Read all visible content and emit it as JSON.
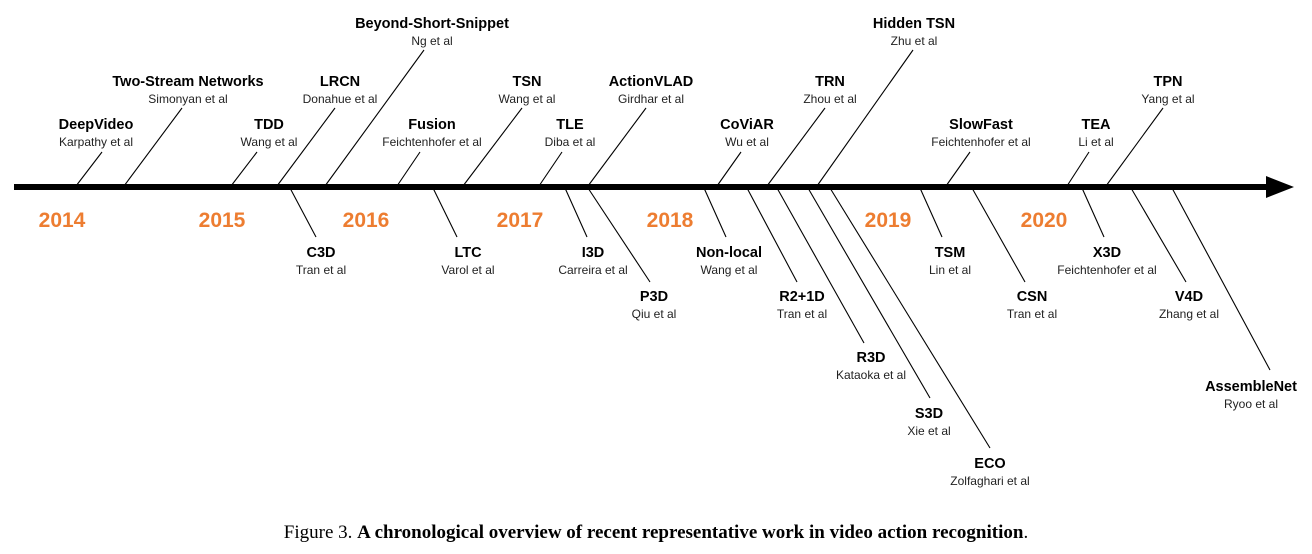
{
  "diagram": {
    "years": [
      "2014",
      "2015",
      "2016",
      "2017",
      "2018",
      "2019",
      "2020"
    ],
    "methods": [
      {
        "id": "deepvideo",
        "name": "DeepVideo",
        "authors": "Karpathy et al"
      },
      {
        "id": "two-stream",
        "name": "Two-Stream Networks",
        "authors": "Simonyan et al"
      },
      {
        "id": "tdd",
        "name": "TDD",
        "authors": "Wang et al"
      },
      {
        "id": "lrcn",
        "name": "LRCN",
        "authors": "Donahue et al"
      },
      {
        "id": "beyond-short-snippet",
        "name": "Beyond-Short-Snippet",
        "authors": "Ng et al"
      },
      {
        "id": "fusion",
        "name": "Fusion",
        "authors": "Feichtenhofer et al"
      },
      {
        "id": "tsn",
        "name": "TSN",
        "authors": "Wang et al"
      },
      {
        "id": "tle",
        "name": "TLE",
        "authors": "Diba et al"
      },
      {
        "id": "actionvlad",
        "name": "ActionVLAD",
        "authors": "Girdhar et al"
      },
      {
        "id": "coviar",
        "name": "CoViAR",
        "authors": "Wu et al"
      },
      {
        "id": "trn",
        "name": "TRN",
        "authors": "Zhou et al"
      },
      {
        "id": "hidden-tsn",
        "name": "Hidden TSN",
        "authors": "Zhu et al"
      },
      {
        "id": "slowfast",
        "name": "SlowFast",
        "authors": "Feichtenhofer et al"
      },
      {
        "id": "tea",
        "name": "TEA",
        "authors": "Li et al"
      },
      {
        "id": "tpn",
        "name": "TPN",
        "authors": "Yang et al"
      },
      {
        "id": "c3d",
        "name": "C3D",
        "authors": "Tran et al"
      },
      {
        "id": "ltc",
        "name": "LTC",
        "authors": "Varol et al"
      },
      {
        "id": "i3d",
        "name": "I3D",
        "authors": "Carreira et al"
      },
      {
        "id": "p3d",
        "name": "P3D",
        "authors": "Qiu et al"
      },
      {
        "id": "non-local",
        "name": "Non-local",
        "authors": "Wang et al"
      },
      {
        "id": "r2plus1d",
        "name": "R2+1D",
        "authors": "Tran et al"
      },
      {
        "id": "r3d",
        "name": "R3D",
        "authors": "Kataoka et al"
      },
      {
        "id": "s3d",
        "name": "S3D",
        "authors": "Xie et al"
      },
      {
        "id": "eco",
        "name": "ECO",
        "authors": "Zolfaghari et al"
      },
      {
        "id": "tsm",
        "name": "TSM",
        "authors": "Lin et al"
      },
      {
        "id": "csn",
        "name": "CSN",
        "authors": "Tran et al"
      },
      {
        "id": "x3d",
        "name": "X3D",
        "authors": "Feichtenhofer et al"
      },
      {
        "id": "v4d",
        "name": "V4D",
        "authors": "Zhang et al"
      },
      {
        "id": "assemblenet",
        "name": "AssembleNet",
        "authors": "Ryoo et al"
      }
    ]
  },
  "caption": {
    "prefix": "Figure 3. ",
    "bold": "A chronological overview of recent representative work in video action recognition",
    "suffix": "."
  },
  "colors": {
    "year": "#ED7D31",
    "axis": "#000000"
  }
}
